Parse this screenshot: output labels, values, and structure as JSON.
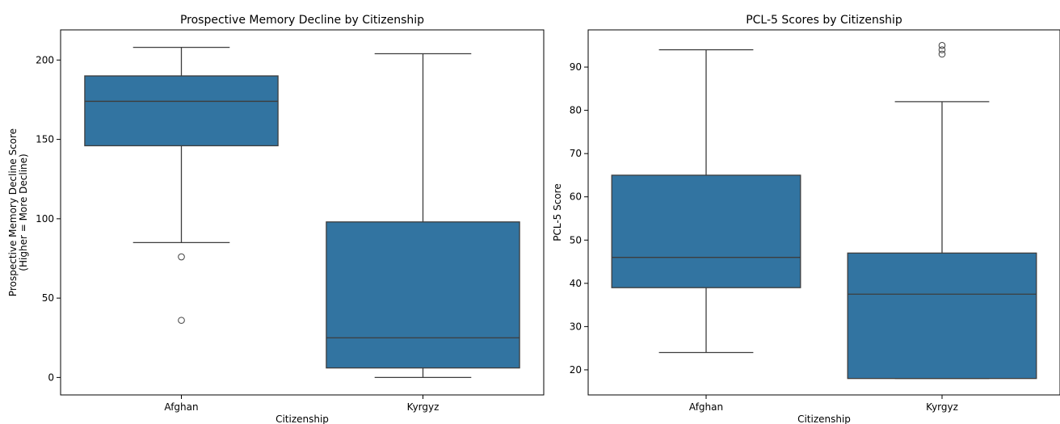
{
  "chart_data": [
    {
      "type": "box",
      "title": "Prospective Memory Decline by Citizenship",
      "xlabel": "Citizenship",
      "ylabel_lines": [
        "Prospective Memory Decline Score",
        "(Higher = More Decline)"
      ],
      "categories": [
        "Afghan",
        "Kyrgyz"
      ],
      "ylim": [
        -11,
        219
      ],
      "yticks": [
        0,
        50,
        100,
        150,
        200
      ],
      "box_color": "#3274a1",
      "line_color": "#3d3d3d",
      "boxes": [
        {
          "whisker_low": 85,
          "q1": 146,
          "median": 174,
          "q3": 190,
          "whisker_high": 208,
          "outliers": [
            76,
            36
          ]
        },
        {
          "whisker_low": 0,
          "q1": 6,
          "median": 25,
          "q3": 98,
          "whisker_high": 204,
          "outliers": []
        }
      ]
    },
    {
      "type": "box",
      "title": "PCL-5 Scores by Citizenship",
      "xlabel": "Citizenship",
      "ylabel_lines": [
        "PCL-5 Score"
      ],
      "categories": [
        "Afghan",
        "Kyrgyz"
      ],
      "ylim": [
        14.2,
        98.6
      ],
      "yticks": [
        20,
        30,
        40,
        50,
        60,
        70,
        80,
        90
      ],
      "box_color": "#3274a1",
      "line_color": "#3d3d3d",
      "boxes": [
        {
          "whisker_low": 24,
          "q1": 39,
          "median": 46,
          "q3": 65,
          "whisker_high": 94,
          "outliers": []
        },
        {
          "whisker_low": 18,
          "q1": 18,
          "median": 37.5,
          "q3": 47,
          "whisker_high": 82,
          "outliers": [
            93,
            94,
            95
          ]
        }
      ]
    }
  ]
}
